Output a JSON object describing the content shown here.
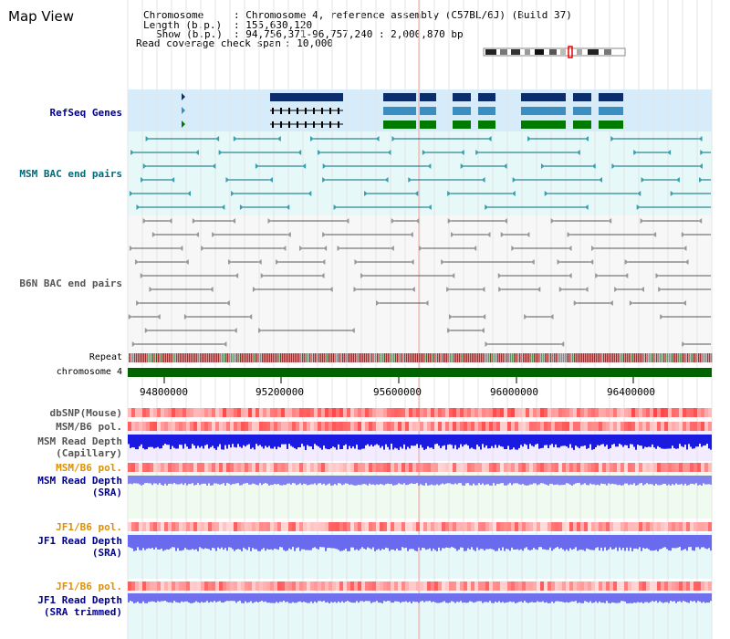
{
  "view_title": "Map View",
  "info": {
    "chromosome_label": "Chromosome",
    "chromosome_value": ": Chromosome 4, reference assembly (C57BL/6J) (Build 37)",
    "length_label": "Length (b.p.)",
    "length_value": ": 155,630,120",
    "show_label": "Show (b.p.)",
    "show_value": ": 94,756,371-96,757,240 : 2,000,870 bp",
    "read_coverage_label": "Read coverage check span",
    "read_coverage_value": ": 10,000"
  },
  "tracks": {
    "refseq": "RefSeq Genes",
    "msm_bac": "MSM BAC end pairs",
    "b6n_bac": "B6N BAC end pairs",
    "repeat": "Repeat",
    "chromosome": "chromosome 4",
    "dbsnp": "dbSNP(Mouse)",
    "msm_b6_pol_1": "MSM/B6 pol.",
    "msm_read_depth_cap_1": "MSM Read Depth",
    "msm_read_depth_cap_2": "(Capillary)",
    "msm_b6_pol_2": "MSM/B6 pol.",
    "msm_read_depth_sra_1": "MSM Read Depth",
    "msm_read_depth_sra_2": "(SRA)",
    "jf1_b6_pol_1": "JF1/B6 pol.",
    "jf1_read_depth_sra_1": "JF1 Read Depth",
    "jf1_read_depth_sra_2": "(SRA)",
    "jf1_b6_pol_2": "JF1/B6 pol.",
    "jf1_read_depth_trim_1": "JF1 Read Depth",
    "jf1_read_depth_trim_2": "(SRA trimmed)"
  },
  "axis": {
    "ticks": [
      "94800000",
      "95200000",
      "95600000",
      "96000000",
      "96400000"
    ]
  },
  "colors": {
    "refseq_dark": "#0b2d6b",
    "refseq_mid": "#3b8fc0",
    "refseq_green": "#007a00",
    "msm_label": "#006a7a",
    "b6n_label": "#555555",
    "orange_label": "#e09000",
    "blue_label": "#00008b",
    "chrom_bar": "#006400"
  }
}
